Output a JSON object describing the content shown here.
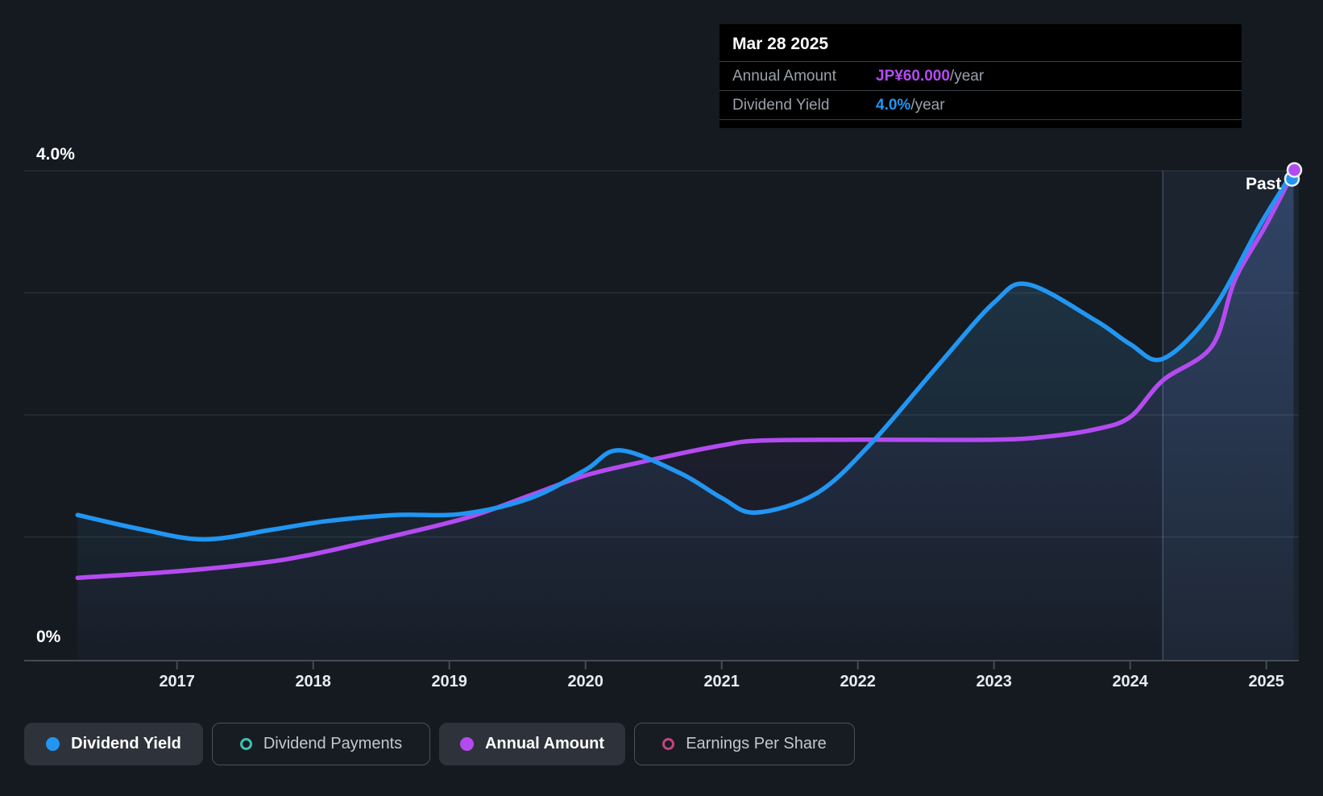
{
  "tooltip": {
    "date": "Mar 28 2025",
    "rows": [
      {
        "label": "Annual Amount",
        "value": "JP¥60.000",
        "suffix": "/year",
        "color": "#b44bf0"
      },
      {
        "label": "Dividend Yield",
        "value": "4.0%",
        "suffix": "/year",
        "color": "#2196f3"
      }
    ]
  },
  "legend": [
    {
      "label": "Dividend Yield",
      "marker": "dot",
      "color": "#2196f3",
      "active": true
    },
    {
      "label": "Dividend Payments",
      "marker": "ring",
      "color": "#3fc1ae",
      "active": false
    },
    {
      "label": "Annual Amount",
      "marker": "dot",
      "color": "#b44bf0",
      "active": true
    },
    {
      "label": "Earnings Per Share",
      "marker": "ring",
      "color": "#c2447e",
      "active": false
    }
  ],
  "colors": {
    "background": "#151a21",
    "blue": "#2196f3",
    "purple": "#b44bf0",
    "teal": "#3fc1ae",
    "pink": "#c2447e",
    "axis_line": "#464c54",
    "gridline": "rgba(255,255,255,0.09)",
    "past_band": "rgba(115,175,235,0.07)",
    "past_divider": "rgba(150,195,240,0.28)"
  },
  "chart_data": {
    "type": "line",
    "title": "Dividend history chart",
    "x_axis": {
      "tick_labels": [
        "2017",
        "2018",
        "2019",
        "2020",
        "2021",
        "2022",
        "2023",
        "2024",
        "2025"
      ],
      "tick_years": [
        2017,
        2018,
        2019,
        2020,
        2021,
        2022,
        2023,
        2024,
        2025
      ],
      "range_years": [
        2016.27,
        2025.24
      ],
      "grid": false
    },
    "y_axis": {
      "label_top": "4.0%",
      "label_bottom": "0%",
      "range_pct": [
        0,
        4
      ],
      "gridline_interval_pct": 1,
      "grid": true
    },
    "series": [
      {
        "name": "Dividend Yield",
        "unit": "%",
        "color": "#2196f3",
        "points": [
          [
            2016.27,
            1.18
          ],
          [
            2016.75,
            1.06
          ],
          [
            2017.2,
            0.98
          ],
          [
            2017.7,
            1.06
          ],
          [
            2018.1,
            1.13
          ],
          [
            2018.6,
            1.18
          ],
          [
            2019.1,
            1.19
          ],
          [
            2019.6,
            1.32
          ],
          [
            2020.0,
            1.55
          ],
          [
            2020.25,
            1.71
          ],
          [
            2020.7,
            1.52
          ],
          [
            2021.0,
            1.32
          ],
          [
            2021.25,
            1.2
          ],
          [
            2021.7,
            1.36
          ],
          [
            2022.1,
            1.77
          ],
          [
            2022.6,
            2.42
          ],
          [
            2023.0,
            2.92
          ],
          [
            2023.25,
            3.07
          ],
          [
            2023.75,
            2.77
          ],
          [
            2024.0,
            2.58
          ],
          [
            2024.24,
            2.46
          ],
          [
            2024.6,
            2.85
          ],
          [
            2024.95,
            3.55
          ],
          [
            2025.2,
            4.0
          ]
        ]
      },
      {
        "name": "Annual Amount",
        "unit": "JP¥/year",
        "color": "#b44bf0",
        "value_axis_max": 60,
        "points": [
          [
            2016.27,
            10.0
          ],
          [
            2017.0,
            10.8
          ],
          [
            2017.6,
            11.8
          ],
          [
            2018.0,
            12.9
          ],
          [
            2018.55,
            15.0
          ],
          [
            2019.13,
            17.4
          ],
          [
            2019.6,
            20.2
          ],
          [
            2020.0,
            22.6
          ],
          [
            2020.45,
            24.4
          ],
          [
            2021.0,
            26.3
          ],
          [
            2021.3,
            26.9
          ],
          [
            2022.0,
            27.0
          ],
          [
            2023.0,
            27.0
          ],
          [
            2023.4,
            27.4
          ],
          [
            2023.75,
            28.3
          ],
          [
            2024.0,
            29.8
          ],
          [
            2024.24,
            34.3
          ],
          [
            2024.6,
            38.5
          ],
          [
            2024.77,
            46.7
          ],
          [
            2025.0,
            53.5
          ],
          [
            2025.2,
            60.0
          ]
        ]
      }
    ],
    "annotations": {
      "past_label": "Past",
      "past_band_start_year": 2024.24,
      "crosshair_date": "Mar 28 2025",
      "legend_position": "bottom"
    }
  }
}
